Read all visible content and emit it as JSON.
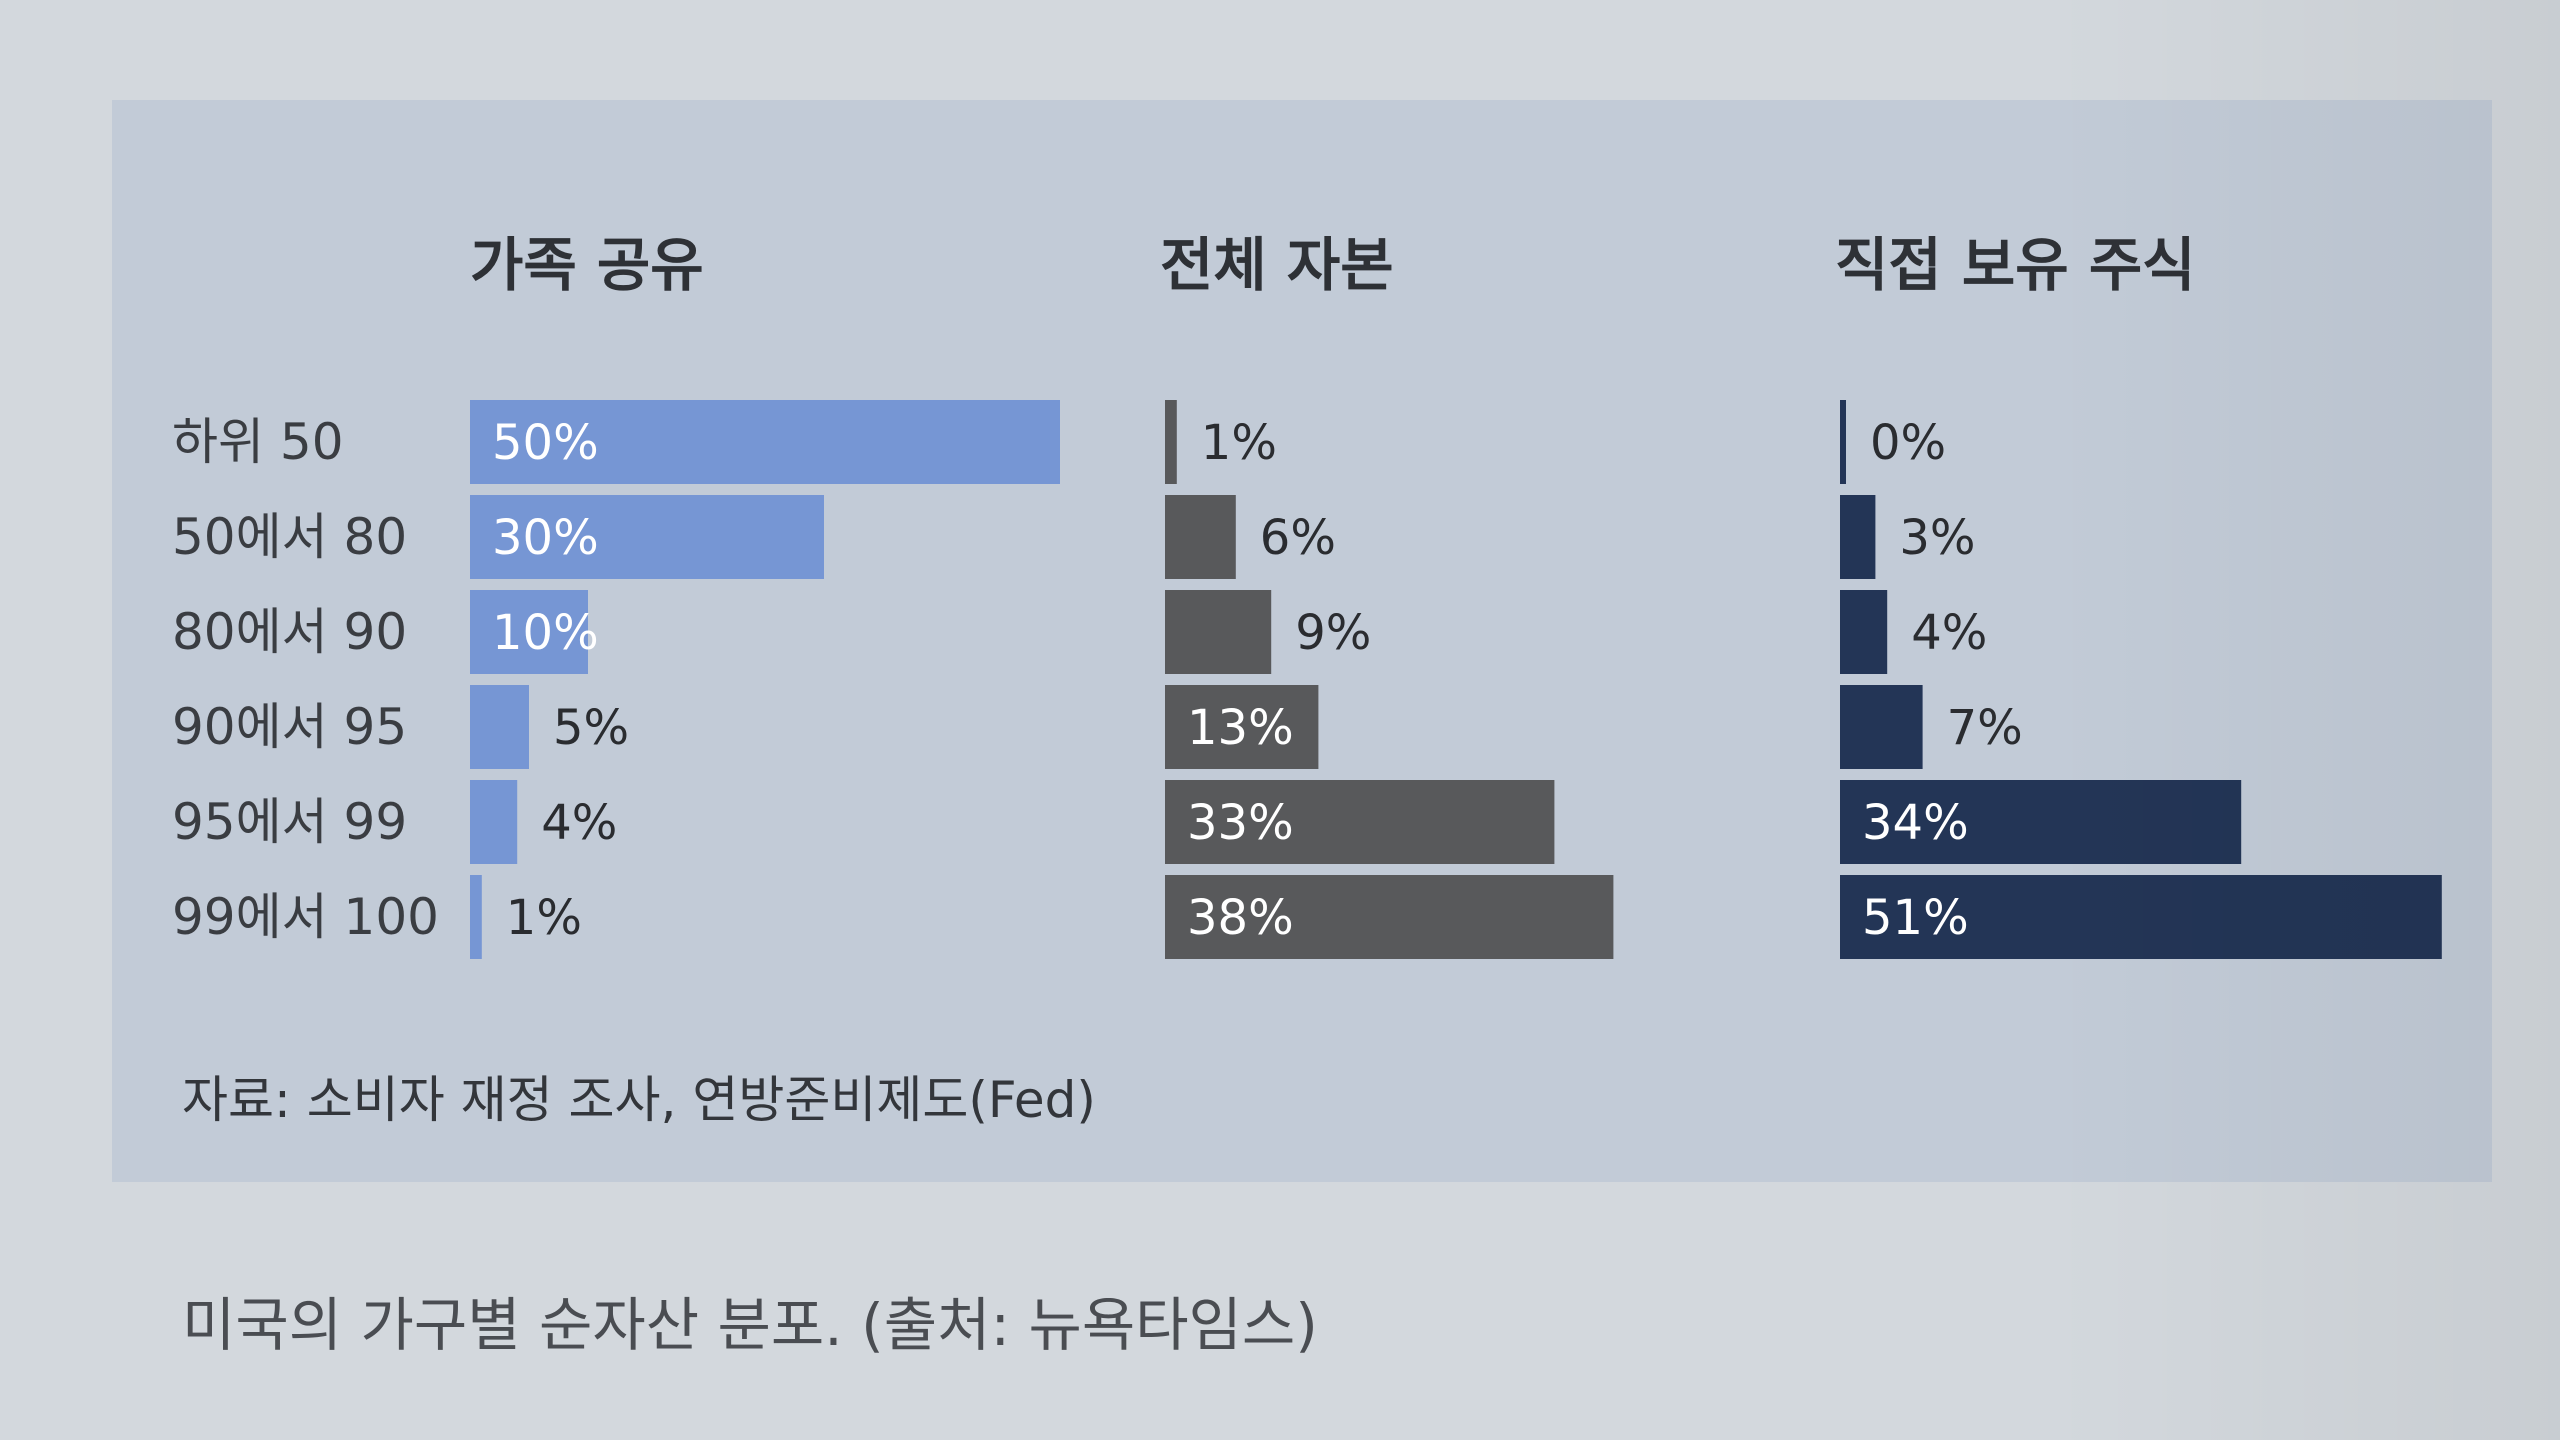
{
  "chart_data": {
    "type": "bar",
    "orientation": "horizontal",
    "categories": [
      "하위 50",
      "50에서 80",
      "80에서 90",
      "90에서 95",
      "95에서 99",
      "99에서 100"
    ],
    "series": [
      {
        "name": "가족 공유",
        "values": [
          50,
          30,
          10,
          5,
          4,
          1
        ],
        "labels": [
          "50%",
          "30%",
          "10%",
          "5%",
          "4%",
          "1%"
        ]
      },
      {
        "name": "전체 자본",
        "values": [
          1,
          6,
          9,
          13,
          33,
          38
        ],
        "labels": [
          "1%",
          "6%",
          "9%",
          "13%",
          "33%",
          "38%"
        ]
      },
      {
        "name": "직접 보유 주식",
        "values": [
          0,
          3,
          4,
          7,
          34,
          51
        ],
        "labels": [
          "0%",
          "3%",
          "4%",
          "7%",
          "34%",
          "51%"
        ]
      }
    ],
    "colors": [
      "#7696d4",
      "#58595b",
      "#233556"
    ],
    "grid": false,
    "legend": "none"
  },
  "source_note": "자료: 소비자 재정 조사, 연방준비제도(Fed)",
  "caption": "미국의 가구별 순자산 분포. (출처: 뉴욕타임스)"
}
